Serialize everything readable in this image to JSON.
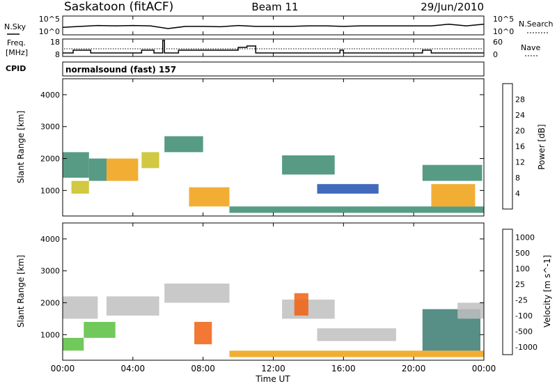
{
  "header": {
    "title": "Saskatoon (fitACF)",
    "beam": "Beam 11",
    "date": "29/Jun/2010"
  },
  "nsky_panel": {
    "left_label": "N.Sky",
    "right_label": "N.Search",
    "left_ticks": [
      "10^5",
      "10^0"
    ],
    "right_ticks": [
      "10^5",
      "10^0"
    ]
  },
  "freq_panel": {
    "left_label_1": "Freq.",
    "left_label_2": "[MHz]",
    "right_label": "Nave",
    "left_ticks": [
      "18",
      "8"
    ],
    "right_ticks": [
      "60",
      "0"
    ]
  },
  "cpid": {
    "label": "CPID",
    "value": "normalsound (fast) 157"
  },
  "x_axis": {
    "label": "Time UT",
    "ticks": [
      "00:00",
      "04:00",
      "08:00",
      "12:00",
      "16:00",
      "20:00",
      "00:00"
    ]
  },
  "power_panel": {
    "ylabel": "Slant Range [km]",
    "yticks": [
      "4000",
      "3000",
      "2000",
      "1000"
    ],
    "colorbar_label": "Power [dB]",
    "colorbar_ticks": [
      "28",
      "24",
      "20",
      "16",
      "12",
      "8",
      "4"
    ],
    "colors": [
      "#2020d0",
      "#2050b0",
      "#3a8a70",
      "#40b050",
      "#c8c020",
      "#f0a010",
      "#e85010",
      "#e02010"
    ]
  },
  "velocity_panel": {
    "ylabel": "Slant Range [km]",
    "yticks": [
      "4000",
      "3000",
      "2000",
      "1000"
    ],
    "colorbar_label": "Velocity [m s^-1]",
    "colorbar_ticks": [
      "1000",
      "500",
      "100",
      "25",
      "-25",
      "-100",
      "-500",
      "-1000"
    ],
    "colors": [
      "#2a40b0",
      "#3a7a70",
      "#58c040",
      "#c0c0c0",
      "#c0c0c0",
      "#f0a010",
      "#f06010",
      "#e02010"
    ]
  },
  "chart_data": [
    {
      "type": "line",
      "title": "N.Sky",
      "x": [
        0,
        1,
        2,
        3,
        4,
        5,
        6,
        7,
        8,
        9,
        10,
        11,
        12,
        13,
        14,
        15,
        16,
        17,
        18,
        19,
        20,
        21,
        22,
        23,
        24
      ],
      "series": [
        {
          "values": [
            100,
            200,
            400,
            300,
            400,
            300,
            40,
            200,
            200,
            150,
            400,
            200,
            200,
            200,
            300,
            300,
            200,
            300,
            300,
            300,
            300,
            300,
            1000,
            300,
            1000
          ]
        }
      ],
      "ylim": [
        1,
        100000
      ]
    },
    {
      "type": "line",
      "title": "Freq.",
      "x": [
        0.0,
        0.6,
        0.6,
        1.6,
        1.6,
        4.5,
        4.5,
        5.2,
        5.2,
        5.7,
        5.7,
        5.8,
        5.8,
        6.6,
        6.6,
        10.0,
        10.0,
        10.5,
        10.5,
        11.0,
        11.0,
        15.8,
        15.8,
        16.0,
        16.0,
        20.5,
        20.5,
        21.0,
        21.0,
        24.0
      ],
      "series": [
        {
          "values": [
            9,
            9,
            11,
            11,
            9,
            9,
            11,
            11,
            9,
            9,
            18,
            18,
            9,
            9,
            11,
            11,
            13,
            13,
            14,
            14,
            9,
            9,
            11,
            11,
            9,
            9,
            11,
            11,
            9,
            9
          ]
        }
      ],
      "ylim": [
        8,
        18
      ]
    },
    {
      "type": "heatmap",
      "title": "Power [dB]",
      "xlabel": "Time UT",
      "ylabel": "Slant Range [km]",
      "xlim": [
        0,
        24
      ],
      "ylim": [
        200,
        4500
      ],
      "regions": [
        {
          "x": [
            0.0,
            1.5
          ],
          "y": [
            1400,
            2200
          ],
          "value": 10
        },
        {
          "x": [
            0.5,
            1.5
          ],
          "y": [
            900,
            1300
          ],
          "value": 20
        },
        {
          "x": [
            1.5,
            2.5
          ],
          "y": [
            1300,
            2000
          ],
          "value": 12
        },
        {
          "x": [
            2.5,
            4.3
          ],
          "y": [
            1300,
            2000
          ],
          "value": 22
        },
        {
          "x": [
            4.5,
            5.5
          ],
          "y": [
            1700,
            2200
          ],
          "value": 18
        },
        {
          "x": [
            5.8,
            8.0
          ],
          "y": [
            2200,
            2700
          ],
          "value": 10
        },
        {
          "x": [
            7.2,
            9.5
          ],
          "y": [
            500,
            1100
          ],
          "value": 22
        },
        {
          "x": [
            9.5,
            24.0
          ],
          "y": [
            300,
            500
          ],
          "value": 12
        },
        {
          "x": [
            12.5,
            15.5
          ],
          "y": [
            1500,
            2100
          ],
          "value": 10
        },
        {
          "x": [
            14.5,
            18.0
          ],
          "y": [
            900,
            1200
          ],
          "value": 8
        },
        {
          "x": [
            20.5,
            23.9
          ],
          "y": [
            1300,
            1800
          ],
          "value": 10
        },
        {
          "x": [
            21.0,
            23.5
          ],
          "y": [
            500,
            1200
          ],
          "value": 24
        }
      ]
    },
    {
      "type": "heatmap",
      "title": "Velocity [m s^-1]",
      "xlabel": "Time UT",
      "ylabel": "Slant Range [km]",
      "xlim": [
        0,
        24
      ],
      "ylim": [
        200,
        4500
      ],
      "regions": [
        {
          "x": [
            0.0,
            2.0
          ],
          "y": [
            1500,
            2200
          ],
          "value": 0
        },
        {
          "x": [
            0.0,
            1.2
          ],
          "y": [
            500,
            900
          ],
          "value": 150
        },
        {
          "x": [
            1.2,
            3.0
          ],
          "y": [
            900,
            1400
          ],
          "value": 300
        },
        {
          "x": [
            2.5,
            5.5
          ],
          "y": [
            1600,
            2200
          ],
          "value": 0
        },
        {
          "x": [
            5.8,
            9.5
          ],
          "y": [
            2000,
            2600
          ],
          "value": 0
        },
        {
          "x": [
            7.5,
            8.5
          ],
          "y": [
            700,
            1400
          ],
          "value": -200
        },
        {
          "x": [
            9.5,
            24.0
          ],
          "y": [
            300,
            500
          ],
          "value": -50
        },
        {
          "x": [
            12.5,
            15.5
          ],
          "y": [
            1500,
            2100
          ],
          "value": 0
        },
        {
          "x": [
            13.2,
            14.0
          ],
          "y": [
            1600,
            2300
          ],
          "value": -300
        },
        {
          "x": [
            14.5,
            19.0
          ],
          "y": [
            800,
            1200
          ],
          "value": 0
        },
        {
          "x": [
            20.5,
            23.8
          ],
          "y": [
            500,
            1800
          ],
          "value": 500
        },
        {
          "x": [
            22.5,
            24.0
          ],
          "y": [
            1500,
            2000
          ],
          "value": 0
        }
      ]
    }
  ]
}
